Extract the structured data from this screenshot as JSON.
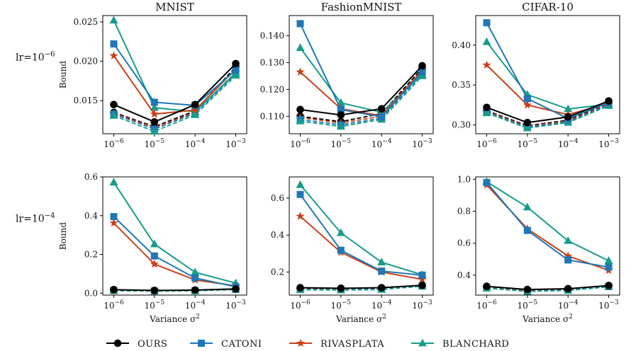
{
  "figure": {
    "row_labels": [
      "lr=10",
      "lr=10"
    ],
    "row_label_exponents": [
      "−6",
      "−4"
    ],
    "ylabel": "Bound",
    "xlabel": "Variance σ",
    "xlabel_sup": "2",
    "x_ticks": [
      {
        "base": "10",
        "exp": "−6"
      },
      {
        "base": "10",
        "exp": "−5"
      },
      {
        "base": "10",
        "exp": "−4"
      },
      {
        "base": "10",
        "exp": "−3"
      }
    ]
  },
  "legend": [
    {
      "name": "OURS",
      "color": "#000000",
      "marker": "circle"
    },
    {
      "name": "CATONI",
      "color": "#1f77b4",
      "marker": "square"
    },
    {
      "name": "RIVASPLATA",
      "color": "#c8401a",
      "marker": "star"
    },
    {
      "name": "BLANCHARD",
      "color": "#169c8c",
      "marker": "triangle"
    }
  ],
  "chart_data": [
    {
      "type": "line",
      "title": "MNIST",
      "row": 0,
      "col": 0,
      "x": [
        1e-06,
        1e-05,
        0.0001,
        0.001
      ],
      "xscale": "log",
      "ylim": [
        0.0108,
        0.0258
      ],
      "yticks": [
        0.015,
        0.02,
        0.025
      ],
      "series": [
        {
          "name": "OURS",
          "values": [
            0.0145,
            0.0123,
            0.0145,
            0.0197
          ]
        },
        {
          "name": "CATONI",
          "values": [
            0.0222,
            0.0148,
            0.0144,
            0.0189
          ]
        },
        {
          "name": "RIVASPLATA",
          "values": [
            0.0207,
            0.0133,
            0.0138,
            0.019
          ]
        },
        {
          "name": "BLANCHARD",
          "values": [
            0.0252,
            0.0141,
            0.0136,
            0.0185
          ]
        }
      ],
      "dashed_series": [
        {
          "color": "#000000",
          "values": [
            0.0135,
            0.0117,
            0.0137,
            0.0193
          ]
        },
        {
          "color": "#c8401a",
          "values": [
            0.0134,
            0.0116,
            0.0135,
            0.0186
          ]
        },
        {
          "color": "#1f77b4",
          "values": [
            0.0133,
            0.0114,
            0.0134,
            0.0184
          ]
        },
        {
          "color": "#169c8c",
          "values": [
            0.0131,
            0.0111,
            0.0132,
            0.0182
          ]
        }
      ]
    },
    {
      "type": "line",
      "title": "FashionMNIST",
      "row": 0,
      "col": 1,
      "x": [
        1e-06,
        1e-05,
        0.0001,
        0.001
      ],
      "xscale": "log",
      "ylim": [
        0.1035,
        0.1475
      ],
      "yticks": [
        0.11,
        0.12,
        0.13,
        0.14
      ],
      "series": [
        {
          "name": "OURS",
          "values": [
            0.1125,
            0.1105,
            0.1128,
            0.1288
          ]
        },
        {
          "name": "CATONI",
          "values": [
            0.1445,
            0.1125,
            0.1098,
            0.1265
          ]
        },
        {
          "name": "RIVASPLATA",
          "values": [
            0.1265,
            0.1128,
            0.1102,
            0.1272
          ]
        },
        {
          "name": "BLANCHARD",
          "values": [
            0.1355,
            0.115,
            0.1115,
            0.1255
          ]
        }
      ],
      "dashed_series": [
        {
          "color": "#000000",
          "values": [
            0.11,
            0.108,
            0.111,
            0.128
          ]
        },
        {
          "color": "#c8401a",
          "values": [
            0.1095,
            0.1075,
            0.11,
            0.1268
          ]
        },
        {
          "color": "#1f77b4",
          "values": [
            0.1088,
            0.1068,
            0.1093,
            0.1258
          ]
        },
        {
          "color": "#169c8c",
          "values": [
            0.1082,
            0.1062,
            0.1088,
            0.125
          ]
        }
      ]
    },
    {
      "type": "line",
      "title": "CIFAR-10",
      "row": 0,
      "col": 2,
      "x": [
        1e-06,
        1e-05,
        0.0001,
        0.001
      ],
      "xscale": "log",
      "ylim": [
        0.289,
        0.437
      ],
      "yticks": [
        0.3,
        0.35,
        0.4
      ],
      "series": [
        {
          "name": "OURS",
          "values": [
            0.322,
            0.303,
            0.31,
            0.33
          ]
        },
        {
          "name": "CATONI",
          "values": [
            0.428,
            0.333,
            0.308,
            0.328
          ]
        },
        {
          "name": "RIVASPLATA",
          "values": [
            0.375,
            0.325,
            0.313,
            0.327
          ]
        },
        {
          "name": "BLANCHARD",
          "values": [
            0.404,
            0.338,
            0.32,
            0.326
          ]
        }
      ],
      "dashed_series": [
        {
          "color": "#000000",
          "values": [
            0.318,
            0.299,
            0.306,
            0.327
          ]
        },
        {
          "color": "#c8401a",
          "values": [
            0.317,
            0.298,
            0.305,
            0.326
          ]
        },
        {
          "color": "#1f77b4",
          "values": [
            0.316,
            0.297,
            0.304,
            0.325
          ]
        },
        {
          "color": "#169c8c",
          "values": [
            0.315,
            0.296,
            0.303,
            0.324
          ]
        }
      ]
    },
    {
      "type": "line",
      "title": "",
      "row": 1,
      "col": 0,
      "x": [
        1e-06,
        1e-05,
        0.0001,
        0.001
      ],
      "xscale": "log",
      "ylim": [
        -0.01,
        0.6
      ],
      "yticks": [
        0.0,
        0.2,
        0.4,
        0.6
      ],
      "series": [
        {
          "name": "OURS",
          "values": [
            0.018,
            0.014,
            0.016,
            0.022
          ]
        },
        {
          "name": "CATONI",
          "values": [
            0.395,
            0.192,
            0.078,
            0.033
          ]
        },
        {
          "name": "RIVASPLATA",
          "values": [
            0.362,
            0.15,
            0.068,
            0.038
          ]
        },
        {
          "name": "BLANCHARD",
          "values": [
            0.572,
            0.253,
            0.108,
            0.052
          ]
        }
      ],
      "dashed_series": [
        {
          "color": "#000000",
          "values": [
            0.016,
            0.013,
            0.015,
            0.021
          ]
        },
        {
          "color": "#c8401a",
          "values": [
            0.015,
            0.012,
            0.014,
            0.02
          ]
        },
        {
          "color": "#1f77b4",
          "values": [
            0.014,
            0.011,
            0.013,
            0.019
          ]
        },
        {
          "color": "#169c8c",
          "values": [
            0.013,
            0.01,
            0.012,
            0.018
          ]
        }
      ]
    },
    {
      "type": "line",
      "title": "",
      "row": 1,
      "col": 1,
      "x": [
        1e-06,
        1e-05,
        0.0001,
        0.001
      ],
      "xscale": "log",
      "ylim": [
        0.075,
        0.715
      ],
      "yticks": [
        0.2,
        0.4,
        0.6
      ],
      "series": [
        {
          "name": "OURS",
          "values": [
            0.115,
            0.112,
            0.115,
            0.128
          ]
        },
        {
          "name": "CATONI",
          "values": [
            0.62,
            0.318,
            0.205,
            0.183
          ]
        },
        {
          "name": "RIVASPLATA",
          "values": [
            0.502,
            0.307,
            0.2,
            0.16
          ]
        },
        {
          "name": "BLANCHARD",
          "values": [
            0.672,
            0.412,
            0.253,
            0.185
          ]
        }
      ],
      "dashed_series": [
        {
          "color": "#000000",
          "values": [
            0.11,
            0.108,
            0.11,
            0.126
          ]
        },
        {
          "color": "#c8401a",
          "values": [
            0.108,
            0.106,
            0.109,
            0.125
          ]
        },
        {
          "color": "#1f77b4",
          "values": [
            0.106,
            0.104,
            0.107,
            0.124
          ]
        },
        {
          "color": "#169c8c",
          "values": [
            0.104,
            0.102,
            0.105,
            0.123
          ]
        }
      ]
    },
    {
      "type": "line",
      "title": "",
      "row": 1,
      "col": 2,
      "x": [
        1e-06,
        1e-05,
        0.0001,
        0.001
      ],
      "xscale": "log",
      "ylim": [
        0.275,
        1.015
      ],
      "yticks": [
        0.4,
        0.6,
        0.8,
        1.0
      ],
      "series": [
        {
          "name": "OURS",
          "values": [
            0.33,
            0.31,
            0.315,
            0.335
          ]
        },
        {
          "name": "CATONI",
          "values": [
            0.98,
            0.68,
            0.495,
            0.45
          ]
        },
        {
          "name": "RIVASPLATA",
          "values": [
            0.965,
            0.69,
            0.52,
            0.43
          ]
        },
        {
          "name": "BLANCHARD",
          "values": [
            0.985,
            0.825,
            0.615,
            0.49
          ]
        }
      ],
      "dashed_series": [
        {
          "color": "#000000",
          "values": [
            0.325,
            0.305,
            0.31,
            0.332
          ]
        },
        {
          "color": "#c8401a",
          "values": [
            0.322,
            0.303,
            0.308,
            0.33
          ]
        },
        {
          "color": "#1f77b4",
          "values": [
            0.32,
            0.3,
            0.306,
            0.328
          ]
        },
        {
          "color": "#169c8c",
          "values": [
            0.318,
            0.298,
            0.304,
            0.326
          ]
        }
      ]
    }
  ]
}
